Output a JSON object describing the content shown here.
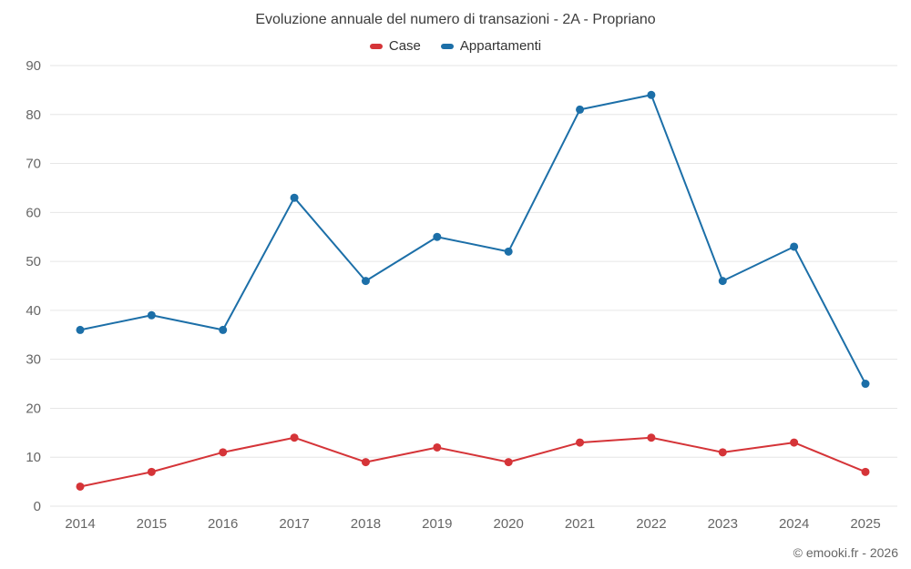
{
  "title": "Evoluzione annuale del numero di transazioni - 2A - Propriano",
  "legend": [
    {
      "label": "Case",
      "color": "#d53438"
    },
    {
      "label": "Appartamenti",
      "color": "#1c6fa8"
    }
  ],
  "footer": "© emooki.fr - 2026",
  "colors": {
    "grid": "#e6e6e6",
    "axis_text": "#666666",
    "title_text": "#3c3c3c"
  },
  "chart_data": {
    "type": "line",
    "title": "Evoluzione annuale del numero di transazioni - 2A - Propriano",
    "categories": [
      "2014",
      "2015",
      "2016",
      "2017",
      "2018",
      "2019",
      "2020",
      "2021",
      "2022",
      "2023",
      "2024",
      "2025"
    ],
    "series": [
      {
        "name": "Case",
        "color": "#d53438",
        "values": [
          4,
          7,
          11,
          14,
          9,
          12,
          9,
          13,
          14,
          11,
          13,
          7
        ]
      },
      {
        "name": "Appartamenti",
        "color": "#1c6fa8",
        "values": [
          36,
          39,
          36,
          63,
          46,
          55,
          52,
          81,
          84,
          46,
          53,
          25
        ]
      }
    ],
    "xlabel": "",
    "ylabel": "",
    "ylim": [
      0,
      90
    ],
    "ytick_step": 10,
    "grid": true,
    "legend_position": "top"
  }
}
